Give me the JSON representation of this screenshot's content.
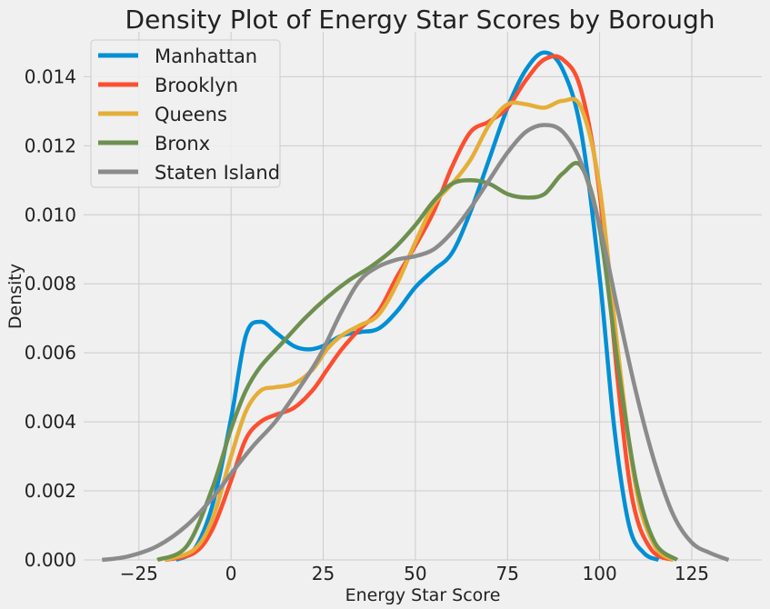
{
  "chart_data": {
    "type": "line",
    "title": "Density Plot of Energy Star Scores by Borough",
    "xlabel": "Energy Star Score",
    "ylabel": "Density",
    "xlim": [
      -40,
      144
    ],
    "ylim": [
      0,
      0.0153
    ],
    "x_ticks": [
      -25,
      0,
      25,
      50,
      75,
      100,
      125
    ],
    "x_tick_labels": [
      "−25",
      "0",
      "25",
      "50",
      "75",
      "100",
      "125"
    ],
    "y_ticks": [
      0,
      0.002,
      0.004,
      0.006,
      0.008,
      0.01,
      0.012,
      0.014
    ],
    "y_tick_labels": [
      "0.000",
      "0.002",
      "0.004",
      "0.006",
      "0.008",
      "0.010",
      "0.012",
      "0.014"
    ],
    "grid": true,
    "legend_position": "top-left",
    "series": [
      {
        "name": "Manhattan",
        "color": "#008fd5",
        "points": [
          [
            -15,
            0
          ],
          [
            -10,
            0.0003
          ],
          [
            -5,
            0.0016
          ],
          [
            0,
            0.0041
          ],
          [
            4,
            0.0065
          ],
          [
            8,
            0.0069
          ],
          [
            12,
            0.0066
          ],
          [
            17,
            0.0062
          ],
          [
            21,
            0.0061
          ],
          [
            25,
            0.0062
          ],
          [
            30,
            0.0065
          ],
          [
            35,
            0.0066
          ],
          [
            40,
            0.0067
          ],
          [
            45,
            0.0072
          ],
          [
            50,
            0.0079
          ],
          [
            55,
            0.0084
          ],
          [
            60,
            0.0089
          ],
          [
            65,
            0.0101
          ],
          [
            70,
            0.0116
          ],
          [
            75,
            0.0131
          ],
          [
            80,
            0.0142
          ],
          [
            85,
            0.0147
          ],
          [
            90,
            0.0142
          ],
          [
            95,
            0.0124
          ],
          [
            100,
            0.0082
          ],
          [
            104,
            0.0038
          ],
          [
            108,
            0.001
          ],
          [
            112,
            0.0002
          ],
          [
            116,
            0
          ]
        ]
      },
      {
        "name": "Brooklyn",
        "color": "#fc4f30",
        "points": [
          [
            -18,
            0
          ],
          [
            -10,
            0.0002
          ],
          [
            -5,
            0.0009
          ],
          [
            0,
            0.0023
          ],
          [
            4,
            0.0035
          ],
          [
            8,
            0.004
          ],
          [
            12,
            0.0042
          ],
          [
            17,
            0.0044
          ],
          [
            22,
            0.0049
          ],
          [
            26,
            0.0055
          ],
          [
            30,
            0.0061
          ],
          [
            35,
            0.0067
          ],
          [
            40,
            0.0072
          ],
          [
            45,
            0.0082
          ],
          [
            50,
            0.0091
          ],
          [
            55,
            0.0101
          ],
          [
            60,
            0.0114
          ],
          [
            65,
            0.0124
          ],
          [
            70,
            0.0127
          ],
          [
            75,
            0.0131
          ],
          [
            80,
            0.0139
          ],
          [
            85,
            0.0145
          ],
          [
            90,
            0.0145
          ],
          [
            95,
            0.0136
          ],
          [
            100,
            0.0106
          ],
          [
            105,
            0.0051
          ],
          [
            109,
            0.0017
          ],
          [
            114,
            0.0003
          ],
          [
            120,
            0
          ]
        ]
      },
      {
        "name": "Queens",
        "color": "#e5ae38",
        "points": [
          [
            -18,
            0
          ],
          [
            -10,
            0.0003
          ],
          [
            -5,
            0.0012
          ],
          [
            0,
            0.003
          ],
          [
            4,
            0.0043
          ],
          [
            8,
            0.0049
          ],
          [
            12,
            0.005
          ],
          [
            17,
            0.0051
          ],
          [
            22,
            0.0055
          ],
          [
            26,
            0.0061
          ],
          [
            30,
            0.0065
          ],
          [
            35,
            0.0068
          ],
          [
            40,
            0.0071
          ],
          [
            45,
            0.008
          ],
          [
            50,
            0.0092
          ],
          [
            55,
            0.0103
          ],
          [
            60,
            0.0109
          ],
          [
            65,
            0.0116
          ],
          [
            70,
            0.0126
          ],
          [
            75,
            0.0132
          ],
          [
            80,
            0.0132
          ],
          [
            85,
            0.0131
          ],
          [
            90,
            0.0133
          ],
          [
            95,
            0.0131
          ],
          [
            100,
            0.0108
          ],
          [
            105,
            0.006
          ],
          [
            110,
            0.002
          ],
          [
            115,
            0.0004
          ],
          [
            120,
            0
          ]
        ]
      },
      {
        "name": "Bronx",
        "color": "#6d904f",
        "points": [
          [
            -20,
            0
          ],
          [
            -12,
            0.0004
          ],
          [
            -5,
            0.0021
          ],
          [
            0,
            0.0038
          ],
          [
            4,
            0.0049
          ],
          [
            8,
            0.0056
          ],
          [
            14,
            0.0063
          ],
          [
            20,
            0.007
          ],
          [
            26,
            0.0076
          ],
          [
            32,
            0.0081
          ],
          [
            38,
            0.0085
          ],
          [
            44,
            0.009
          ],
          [
            50,
            0.0097
          ],
          [
            55,
            0.0104
          ],
          [
            60,
            0.0109
          ],
          [
            65,
            0.011
          ],
          [
            70,
            0.0109
          ],
          [
            75,
            0.0106
          ],
          [
            80,
            0.0105
          ],
          [
            85,
            0.0106
          ],
          [
            90,
            0.0112
          ],
          [
            95,
            0.0114
          ],
          [
            100,
            0.0096
          ],
          [
            105,
            0.0056
          ],
          [
            110,
            0.0022
          ],
          [
            115,
            0.0005
          ],
          [
            121,
            0
          ]
        ]
      },
      {
        "name": "Staten Island",
        "color": "#8b8b8b",
        "points": [
          [
            -35,
            0
          ],
          [
            -28,
            0.0001
          ],
          [
            -20,
            0.0004
          ],
          [
            -12,
            0.001
          ],
          [
            -5,
            0.0018
          ],
          [
            0,
            0.0025
          ],
          [
            6,
            0.0033
          ],
          [
            12,
            0.004
          ],
          [
            18,
            0.0049
          ],
          [
            24,
            0.0059
          ],
          [
            30,
            0.0072
          ],
          [
            35,
            0.0081
          ],
          [
            40,
            0.0085
          ],
          [
            45,
            0.0087
          ],
          [
            50,
            0.0088
          ],
          [
            55,
            0.009
          ],
          [
            60,
            0.0095
          ],
          [
            65,
            0.0102
          ],
          [
            70,
            0.011
          ],
          [
            75,
            0.0118
          ],
          [
            80,
            0.0124
          ],
          [
            85,
            0.0126
          ],
          [
            90,
            0.0124
          ],
          [
            95,
            0.0115
          ],
          [
            100,
            0.0097
          ],
          [
            105,
            0.0072
          ],
          [
            110,
            0.0048
          ],
          [
            115,
            0.0028
          ],
          [
            120,
            0.0013
          ],
          [
            125,
            0.0005
          ],
          [
            130,
            0.0002
          ],
          [
            135,
            0
          ]
        ]
      }
    ]
  }
}
